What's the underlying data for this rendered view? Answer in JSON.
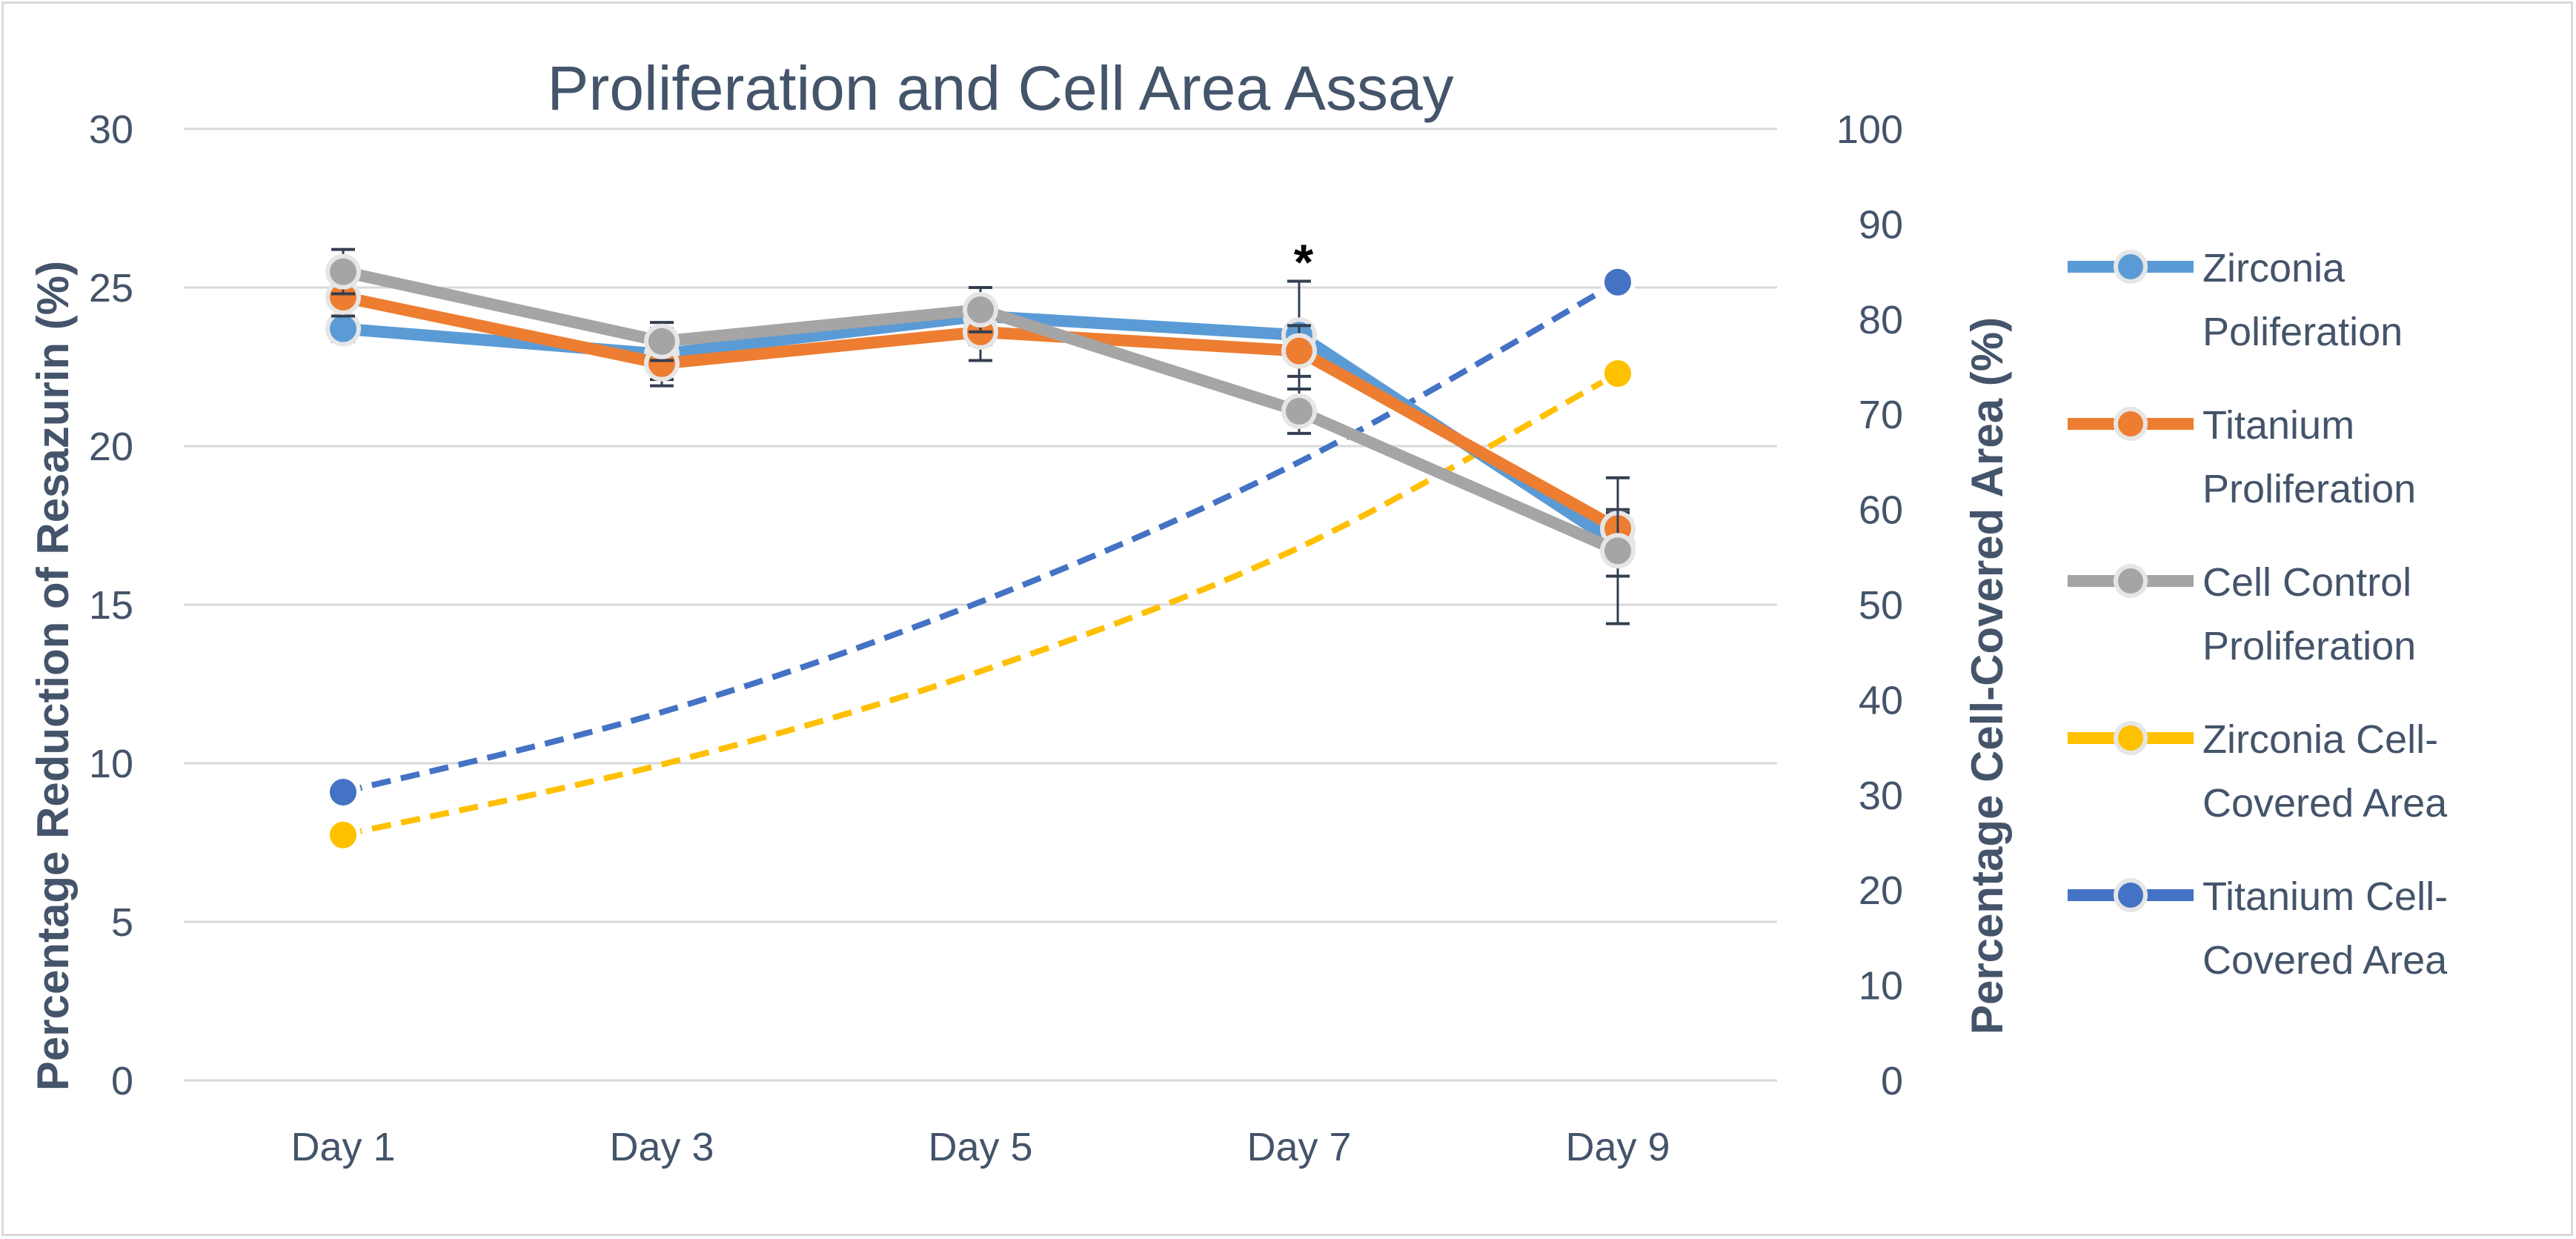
{
  "chart_data": {
    "type": "line",
    "title": "Proliferation and Cell Area Assay",
    "categories": [
      "Day 1",
      "Day 3",
      "Day 5",
      "Day 7",
      "Day 9"
    ],
    "y_left": {
      "label": "Percentage Reduction of Resazurin (%)",
      "range": [
        0,
        30
      ],
      "ticks": [
        "0",
        "5",
        "10",
        "15",
        "20",
        "25",
        "30"
      ]
    },
    "y_right": {
      "label": "Percentage Cell-Covered Area (%)",
      "range": [
        0,
        100
      ],
      "ticks": [
        "0",
        "10",
        "20",
        "30",
        "40",
        "50",
        "60",
        "70",
        "80",
        "90",
        "100"
      ]
    },
    "grid": true,
    "legend_position": "right",
    "series": [
      {
        "name": "Zirconia Poliferation",
        "legend_lines": [
          "Zirconia",
          "Poliferation"
        ],
        "axis": "left",
        "style": "solid",
        "color": "#5b9bd5",
        "values": [
          23.7,
          22.9,
          24.1,
          23.5,
          16.9
        ],
        "error": [
          0.4,
          0.8,
          0.9,
          1.7,
          1.0
        ]
      },
      {
        "name": "Titanium Proliferation",
        "legend_lines": [
          "Titanium",
          "Proliferation"
        ],
        "axis": "left",
        "style": "solid",
        "color": "#ed7d31",
        "values": [
          24.7,
          22.6,
          23.6,
          23.0,
          17.4
        ],
        "error": [
          0.6,
          0.7,
          0.9,
          0.8,
          0.6
        ]
      },
      {
        "name": "Cell Control Proliferation",
        "legend_lines": [
          "Cell Control",
          "Proliferation"
        ],
        "axis": "left",
        "style": "solid",
        "color": "#a5a5a5",
        "values": [
          25.5,
          23.3,
          24.3,
          21.1,
          16.7
        ],
        "error": [
          0.7,
          0.6,
          0.7,
          0.7,
          2.3
        ]
      },
      {
        "name": "Zirconia Cell-Covered Area",
        "legend_lines": [
          "Zirconia Cell-",
          "Covered Area"
        ],
        "axis": "right",
        "style": "dashed",
        "color": "#ffc000",
        "values": [
          25.8,
          null,
          null,
          null,
          74.3
        ],
        "trend": [
          25.8,
          33.2,
          43.0,
          56.0,
          74.3
        ]
      },
      {
        "name": "Titanium Cell-Covered Area",
        "legend_lines": [
          "Titanium Cell-",
          "Covered Area"
        ],
        "axis": "right",
        "style": "dashed",
        "color": "#4472c4",
        "values": [
          30.3,
          null,
          null,
          null,
          83.9
        ],
        "trend": [
          30.3,
          38.7,
          50.3,
          65.0,
          83.9
        ]
      }
    ],
    "annotations": [
      {
        "text": "*",
        "category": "Day 7",
        "axis": "left",
        "y": 26.1
      }
    ]
  }
}
